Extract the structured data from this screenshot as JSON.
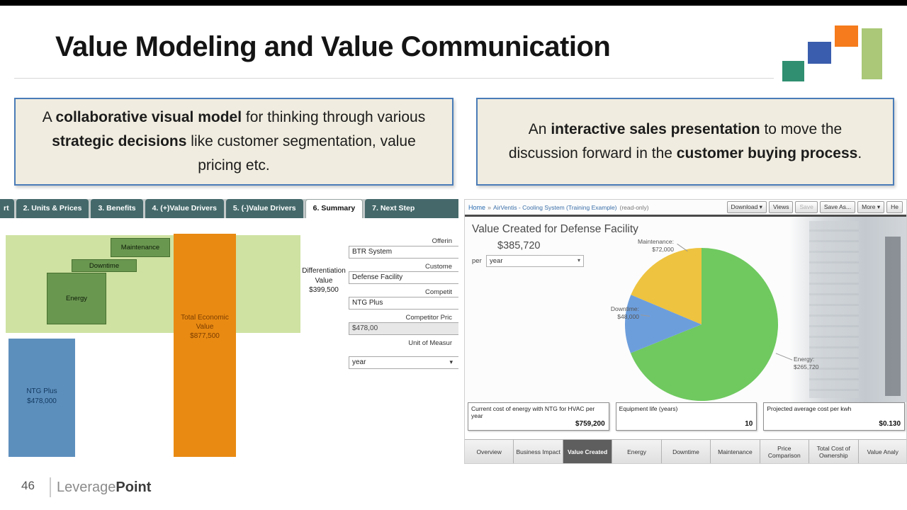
{
  "slide": {
    "title": "Value Modeling and Value Communication",
    "page_number": "46",
    "brand": {
      "leverage": "Leverage",
      "point": "Point"
    }
  },
  "icons": {
    "caret_down": "▾",
    "breadcrumb_sep": "»"
  },
  "callout_left": {
    "pre": "A ",
    "bold1": "collaborative visual model",
    "mid": " for thinking through various ",
    "bold2": "strategic decisions",
    "post": " like customer segmentation, value pricing etc."
  },
  "callout_right": {
    "pre": "An ",
    "bold1": "interactive sales presentation",
    "mid": " to move the discussion forward in the ",
    "bold2": "customer buying process",
    "post": "."
  },
  "model_tool": {
    "tabs": [
      {
        "label": "rt"
      },
      {
        "label": "2. Units & Prices"
      },
      {
        "label": "3. Benefits"
      },
      {
        "label": "4. (+)Value Drivers"
      },
      {
        "label": "5. (-)Value Drivers"
      },
      {
        "label": "6. Summary"
      },
      {
        "label": "7. Next Step"
      }
    ],
    "active_tab": "6. Summary",
    "chart": {
      "maintenance": "Maintenance",
      "downtime": "Downtime",
      "energy": "Energy",
      "total_economic_value": "Total Economic\nValue\n$877,500",
      "differentiation": "Differentiation\nValue\n$399,500",
      "ntg_plus": "NTG Plus\n$478,000",
      "colors": {
        "band": "#cfe2a2",
        "driver_box": "#6a9750",
        "total_bar": "#e98a12",
        "competitor_bar": "#5d8fbd"
      }
    },
    "form": {
      "fields": [
        {
          "label": "Offerin",
          "value": "BTR System"
        },
        {
          "label": "Custome",
          "value": "Defense Facility"
        },
        {
          "label": "Competit",
          "value": "NTG Plus"
        },
        {
          "label": "Competitor Pric",
          "value": "$478,00"
        },
        {
          "label": "Unit of Measur",
          "value": "year"
        }
      ]
    }
  },
  "presentation": {
    "toolbar": {
      "home": "Home",
      "doc_title": "AirVentis - Cooling System (Training Example)",
      "readonly": "(read-only)",
      "buttons": [
        "Download ▾",
        "Views",
        "Save",
        "Save As...",
        "More ▾",
        "He"
      ]
    },
    "headline": "Value Created for Defense Facility",
    "total_value": "$385,720",
    "per_label": "per",
    "period_value": "year",
    "chart_data": {
      "type": "pie",
      "title": "Value Created for Defense Facility",
      "total": 385720,
      "slices": [
        {
          "label": "Energy",
          "value": 265720,
          "display": "Energy:\n$265,720",
          "color": "#6fc95f"
        },
        {
          "label": "Downtime",
          "value": 48000,
          "display": "Downtime:\n$48,000",
          "color": "#6d9edc"
        },
        {
          "label": "Maintenance",
          "value": 72000,
          "display": "Maintenance:\n$72,000",
          "color": "#eec33f"
        }
      ]
    },
    "stats": [
      {
        "label": "Current cost of energy with NTG for HVAC per year",
        "value": "$759,200"
      },
      {
        "label": "Equipment life (years)",
        "value": "10"
      },
      {
        "label": "Projected average cost per kwh",
        "value": "$0.130"
      }
    ],
    "tabs": [
      "Overview",
      "Business Impact",
      "Value Created",
      "Energy",
      "Downtime",
      "Maintenance",
      "Price Comparison",
      "Total Cost of Ownership",
      "Value Analy"
    ],
    "active_tab": "Value Created"
  }
}
